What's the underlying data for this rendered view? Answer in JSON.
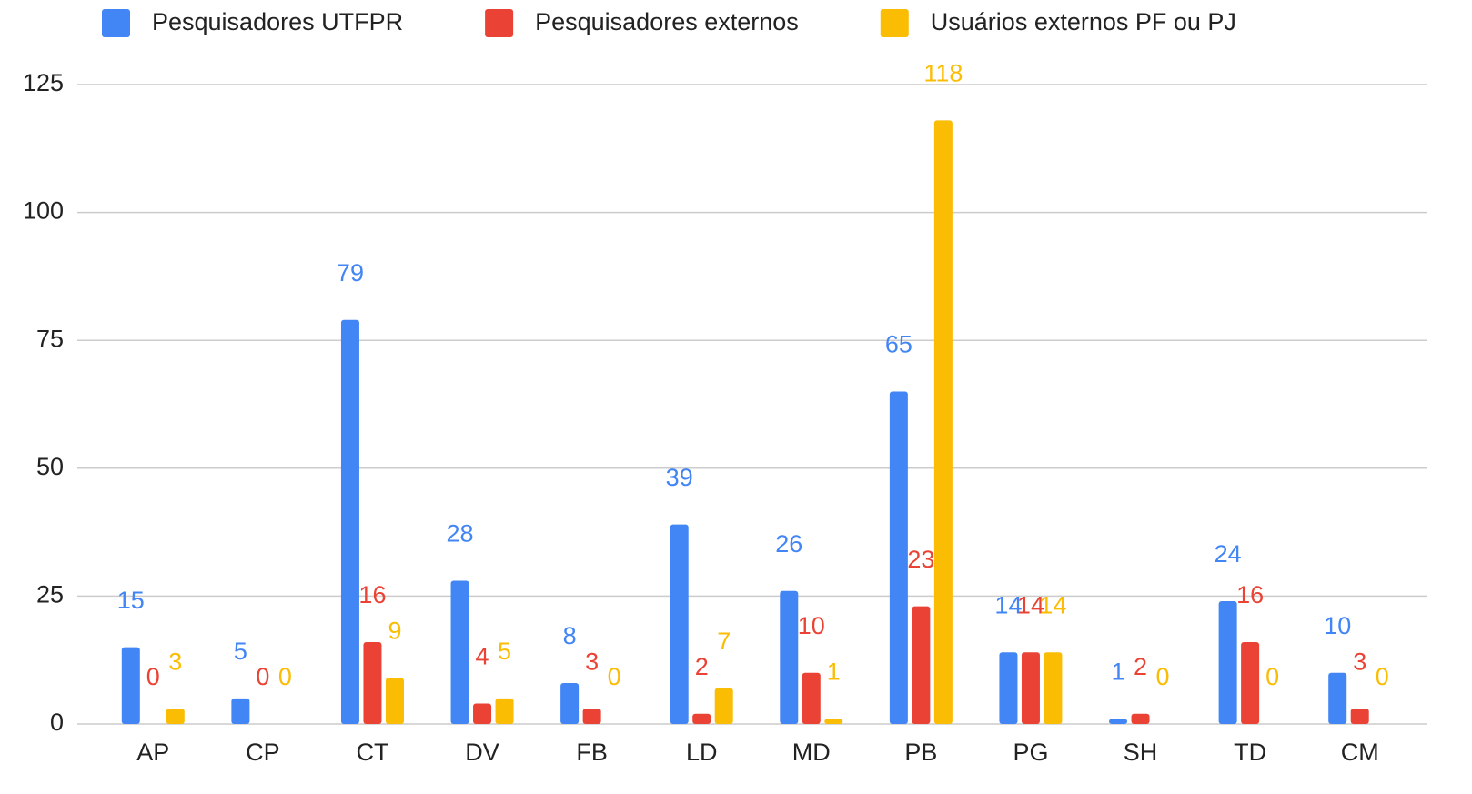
{
  "chart_data": {
    "type": "bar",
    "categories": [
      "AP",
      "CP",
      "CT",
      "DV",
      "FB",
      "LD",
      "MD",
      "PB",
      "PG",
      "SH",
      "TD",
      "CM"
    ],
    "series": [
      {
        "name": "Pesquisadores UTFPR",
        "color": "#4285f4",
        "values": [
          15,
          5,
          79,
          28,
          8,
          39,
          26,
          65,
          14,
          1,
          24,
          10
        ]
      },
      {
        "name": "Pesquisadores externos",
        "color": "#ea4335",
        "values": [
          0,
          0,
          16,
          4,
          3,
          2,
          10,
          23,
          14,
          2,
          16,
          3
        ]
      },
      {
        "name": "Usuários externos PF ou PJ",
        "color": "#fbbc04",
        "values": [
          3,
          0,
          9,
          5,
          0,
          7,
          1,
          118,
          14,
          0,
          0,
          0
        ]
      }
    ],
    "ylim": [
      0,
      125
    ],
    "yticks": [
      0,
      25,
      50,
      75,
      100,
      125
    ],
    "grid": true,
    "legend": "top"
  }
}
